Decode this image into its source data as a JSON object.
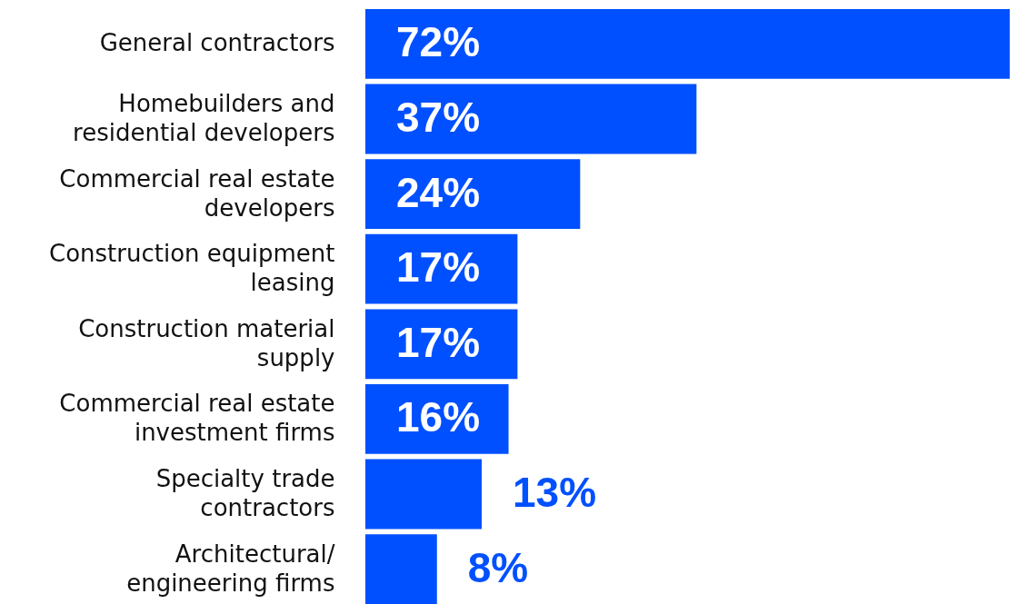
{
  "chart_data": {
    "type": "bar",
    "orientation": "horizontal",
    "categories": [
      "General contractors",
      "Homebuilders and residential developers",
      "Commercial real estate developers",
      "Construction equipment leasing",
      "Construction material supply",
      "Commercial real estate investment firms",
      "Specialty trade contractors",
      "Architectural/ engineering firms"
    ],
    "values": [
      72,
      37,
      24,
      17,
      17,
      16,
      13,
      8
    ],
    "value_labels": [
      "72%",
      "37%",
      "24%",
      "17%",
      "17%",
      "16%",
      "13%",
      "8%"
    ],
    "color": "#0050ff",
    "tick_labels": "y",
    "grid": false
  }
}
